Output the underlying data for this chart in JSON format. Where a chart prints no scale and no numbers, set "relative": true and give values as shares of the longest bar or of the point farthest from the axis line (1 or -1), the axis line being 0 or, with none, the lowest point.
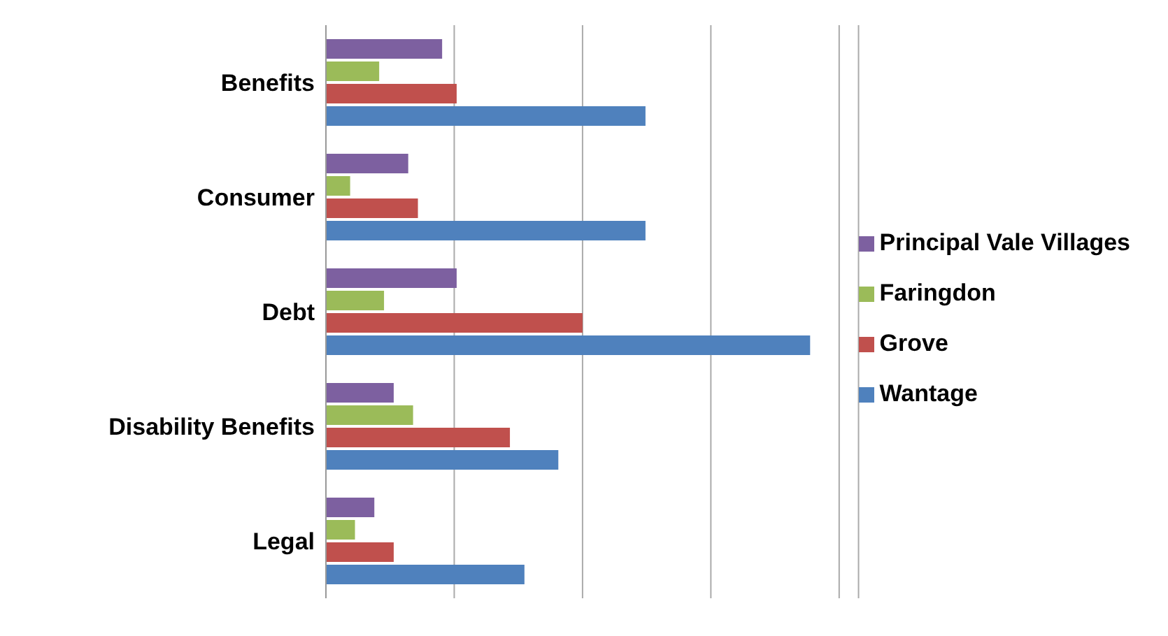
{
  "chart_data": {
    "type": "bar",
    "orientation": "horizontal",
    "relative": true,
    "grid": "x",
    "legend": "right",
    "categories": [
      "Benefits",
      "Consumer",
      "Debt",
      "Disability Benefits",
      "Legal"
    ],
    "series": [
      {
        "name": "Principal Vale Villages",
        "color": "#7d60a0",
        "values": [
          0.24,
          0.17,
          0.27,
          0.14,
          0.1
        ]
      },
      {
        "name": "Faringdon",
        "color": "#9bbb59",
        "values": [
          0.11,
          0.05,
          0.12,
          0.18,
          0.06
        ]
      },
      {
        "name": "Grove",
        "color": "#c0504d",
        "values": [
          0.27,
          0.19,
          0.53,
          0.38,
          0.14
        ]
      },
      {
        "name": "Wantage",
        "color": "#4f81bd",
        "values": [
          0.66,
          0.66,
          1,
          0.48,
          0.41
        ]
      }
    ]
  }
}
